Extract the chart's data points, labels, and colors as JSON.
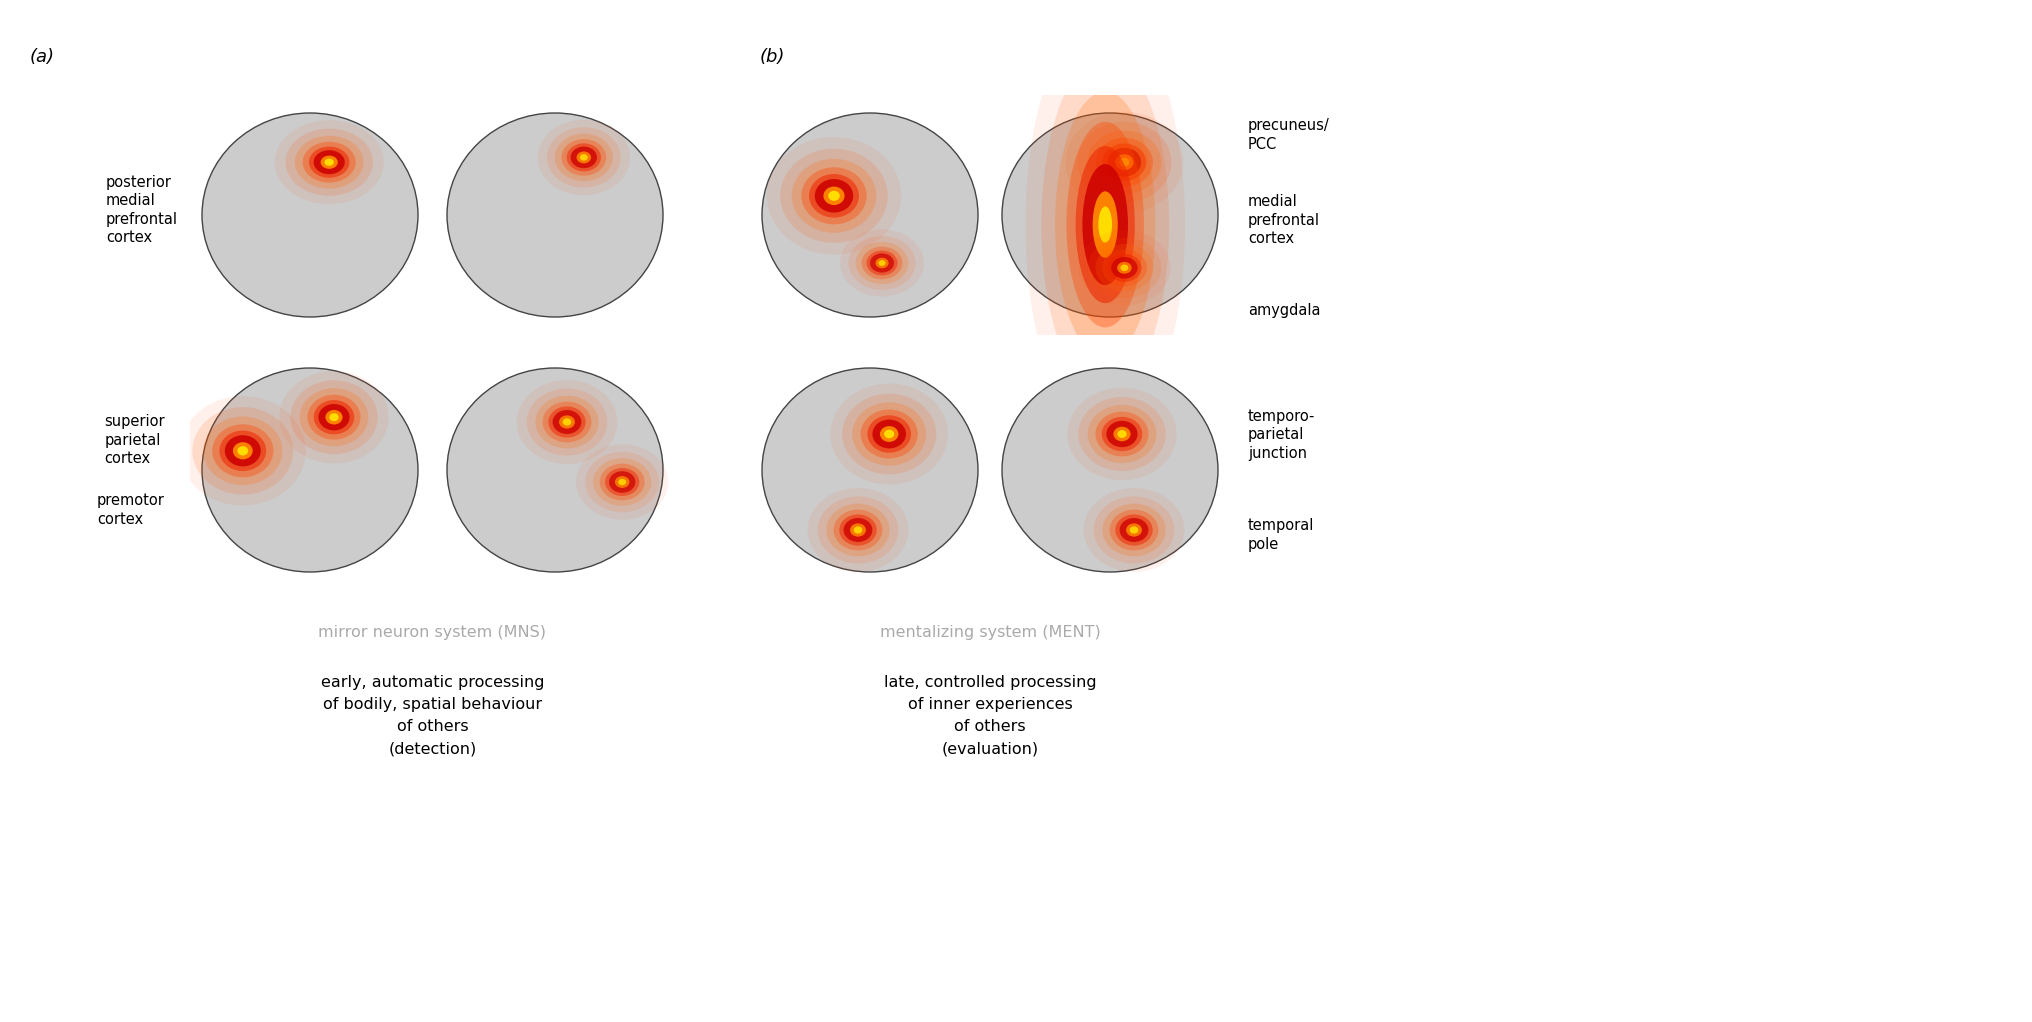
{
  "fig_width": 20.32,
  "fig_height": 10.22,
  "dpi": 100,
  "background_color": "#ffffff",
  "panel_a_label": "(a)",
  "panel_b_label": "(b)",
  "mns_label": "mirror neuron system (MNS)",
  "ment_label": "mentalizing system (MENT)",
  "mns_desc": "early, automatic processing\nof bodily, spatial behaviour\nof others\n(detection)",
  "ment_desc": "late, controlled processing\nof inner experiences\nof others\n(evaluation)",
  "text_color_gray": "#aaaaaa",
  "label_fontsize": 10.5,
  "desc_fontsize": 11.5,
  "system_label_fontsize": 11.5,
  "panel_label_fontsize": 13,
  "left_top_label": "posterior\nmedial\nprefrontal\ncortex",
  "left_bot_label1": "superior\nparietal\ncortex",
  "left_bot_label2": "premotor\ncortex",
  "right_top_label1": "precuneus/\nPCC",
  "right_top_label2": "medial\nprefrontal\ncortex",
  "right_top_label3": "amygdala",
  "right_bot_label1": "temporo-\nparietal\njunction",
  "right_bot_label2": "temporal\npole"
}
